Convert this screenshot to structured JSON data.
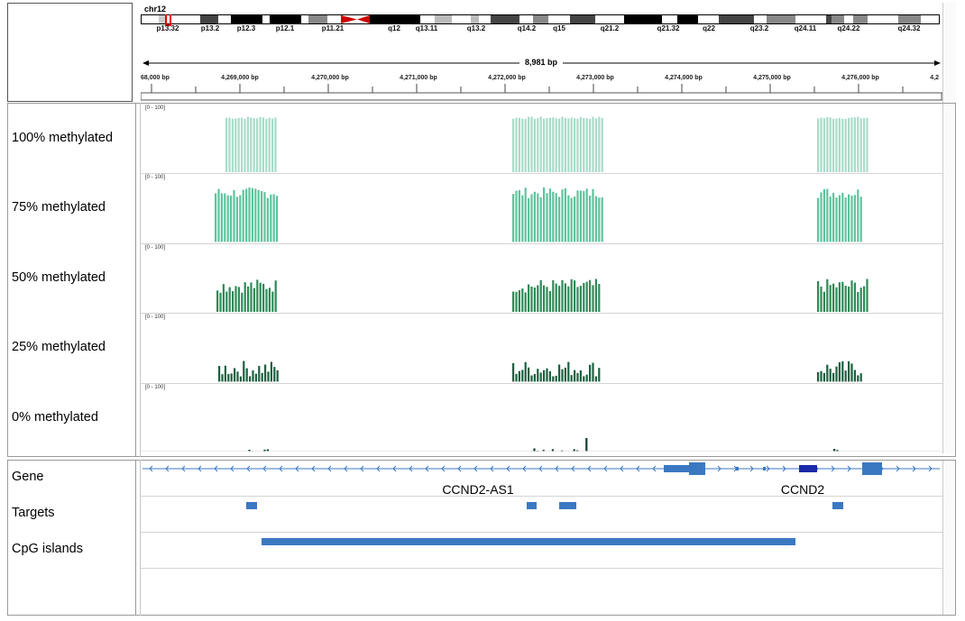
{
  "ideogram": {
    "chromosome": "chr12",
    "bands": [
      "p13.32",
      "p13.2",
      "p12.3",
      "p12.1",
      "p11.21",
      "q12",
      "q13.11",
      "q13.2",
      "q14.2",
      "q15",
      "q21.2",
      "q21.32",
      "q22",
      "q23.2",
      "q24.11",
      "q24.22",
      "q24.32"
    ]
  },
  "ruler": {
    "span_label": "8,981 bp",
    "ticks": [
      "68,000 bp",
      "4,269,000 bp",
      "4,270,000 bp",
      "4,271,000 bp",
      "4,272,000 bp",
      "4,273,000 bp",
      "4,274,000 bp",
      "4,275,000 bp",
      "4,276,000 bp",
      "4,2"
    ]
  },
  "tracks": [
    {
      "label": "100% methylated",
      "range": "[0 - 100]",
      "color": "#a8dcc8"
    },
    {
      "label": "75% methylated",
      "range": "[0 - 100]",
      "color": "#5ec49c"
    },
    {
      "label": "50% methylated",
      "range": "[0 - 100]",
      "color": "#2e8b57"
    },
    {
      "label": "25% methylated",
      "range": "[0 - 100]",
      "color": "#1b6040"
    },
    {
      "label": "0% methylated",
      "range": "[0 - 100]",
      "color": "#124030"
    }
  ],
  "annotations": {
    "gene_label": "Gene",
    "targets_label": "Targets",
    "cpg_label": "CpG islands",
    "genes": [
      "CCND2-AS1",
      "CCND2"
    ],
    "feature_color": "#3b78c2"
  }
}
